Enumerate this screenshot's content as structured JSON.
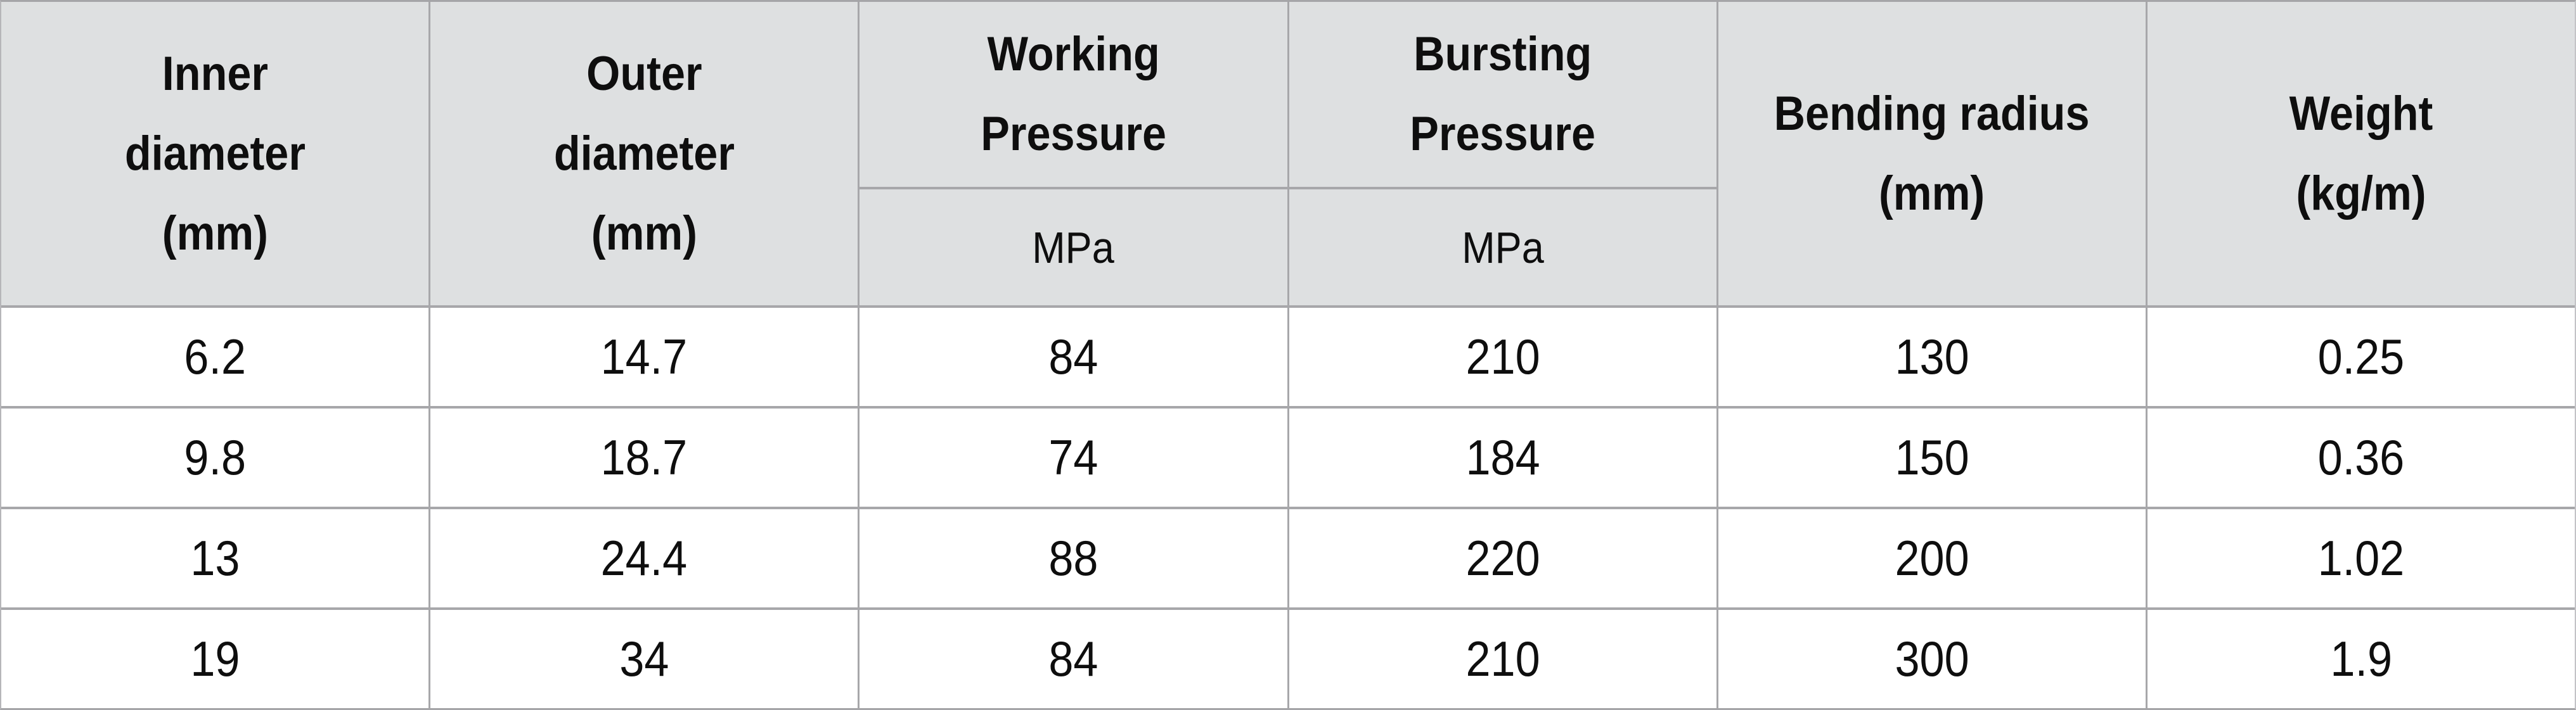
{
  "table": {
    "columns": [
      {
        "label": "Inner\ndiameter\n(mm)"
      },
      {
        "label": "Outer\ndiameter\n(mm)"
      },
      {
        "label": "Working\nPressure",
        "unit": "MPa"
      },
      {
        "label": "Bursting\nPressure",
        "unit": "MPa"
      },
      {
        "label": "Bending radius\n(mm)"
      },
      {
        "label": "Weight\n(kg/m)"
      }
    ],
    "rows": [
      [
        "6.2",
        "14.7",
        "84",
        "210",
        "130",
        "0.25"
      ],
      [
        "9.8",
        "18.7",
        "74",
        "184",
        "150",
        "0.36"
      ],
      [
        "13",
        "24.4",
        "88",
        "220",
        "200",
        "1.02"
      ],
      [
        "19",
        "34",
        "84",
        "210",
        "300",
        "1.9"
      ]
    ]
  },
  "colors": {
    "header_bg": "#dee0e1",
    "row_bg": "#ffffff",
    "grid_line": "#a7a7aa",
    "text": "#0e0e0e"
  },
  "chart_data": {
    "type": "table",
    "title": "",
    "column_headers": [
      "Inner diameter (mm)",
      "Outer diameter (mm)",
      "Working Pressure MPa",
      "Bursting Pressure MPa",
      "Bending radius (mm)",
      "Weight (kg/m)"
    ],
    "rows": [
      [
        6.2,
        14.7,
        84,
        210,
        130,
        0.25
      ],
      [
        9.8,
        18.7,
        74,
        184,
        150,
        0.36
      ],
      [
        13,
        24.4,
        88,
        220,
        200,
        1.02
      ],
      [
        19,
        34,
        84,
        210,
        300,
        1.9
      ]
    ],
    "layout_hints": {
      "header_two_tier_columns": [
        "Working Pressure",
        "Bursting Pressure"
      ],
      "unit_subrow_label": "MPa",
      "grid": "on"
    }
  }
}
